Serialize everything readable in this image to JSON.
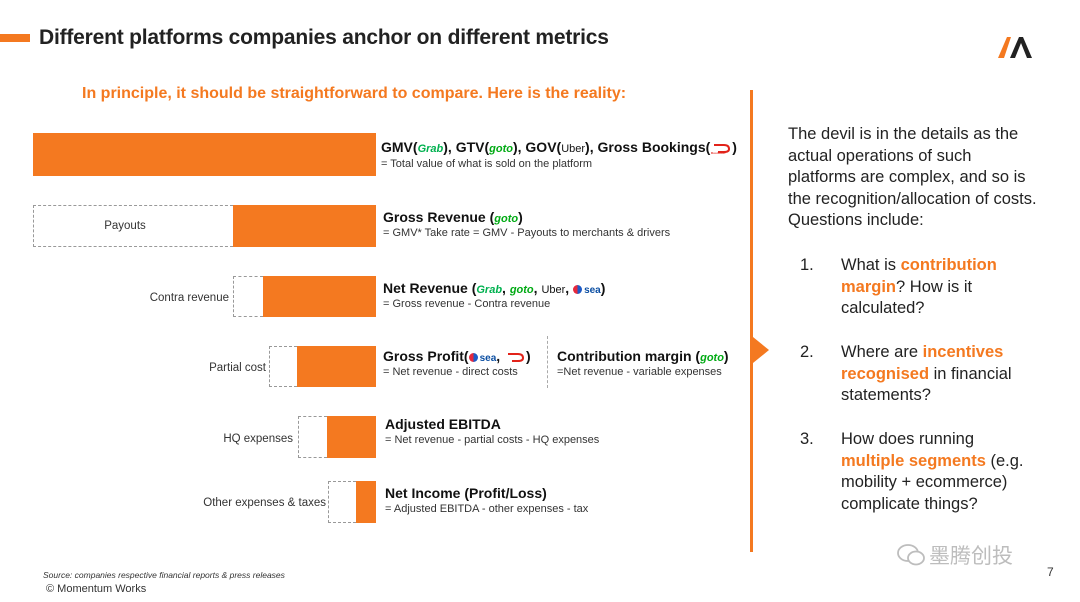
{
  "header": {
    "title": "Different platforms companies anchor on different metrics",
    "subtitle": "In principle, it should be straightforward to compare. Here is the reality:"
  },
  "brands": {
    "grab": "Grab",
    "goto": "goto",
    "uber": "Uber",
    "sea": "sea",
    "doordash": "DoorDash"
  },
  "metrics": [
    {
      "title": "GMV(",
      "title_mid1": "), GTV(",
      "title_mid2": "), GOV(",
      "title_mid3": "), Gross Bookings(",
      "title_end": ")",
      "desc": "= Total value of what is sold on the platform",
      "side_label": ""
    },
    {
      "title": "Gross Revenue (",
      "title_end": ")",
      "desc": "= GMV* Take rate = GMV - Payouts to merchants & drivers",
      "side_label": "Payouts"
    },
    {
      "title": "Net Revenue (",
      "sep": ", ",
      "title_end": ")",
      "desc": "= Gross revenue - Contra revenue",
      "side_label": "Contra revenue"
    },
    {
      "title": "Gross Profit(",
      "title_end": ")",
      "desc": "= Net revenue - direct costs",
      "side_label": "Partial cost"
    },
    {
      "title": "Adjusted EBITDA",
      "desc": "= Net revenue - partial costs - HQ expenses",
      "side_label": "HQ expenses"
    },
    {
      "title": "Net Income (Profit/Loss)",
      "desc": "= Adjusted EBITDA - other expenses - tax",
      "side_label": "Other expenses & taxes"
    }
  ],
  "contribution": {
    "title": "Contribution margin (",
    "title_end": ")",
    "desc": "=Net revenue - variable expenses"
  },
  "sidebar": {
    "intro": "The devil is in the details as the actual operations of such platforms are complex, and so is the recognition/allocation of costs. Questions include:",
    "questions": [
      {
        "num": "1.",
        "pre": "What is ",
        "hl": "contribution margin",
        "post": "? How is it calculated?"
      },
      {
        "num": "2.",
        "pre": "Where are ",
        "hl": "incentives recognised",
        "post": " in financial statements?"
      },
      {
        "num": "3.",
        "pre": "How does running ",
        "hl": "multiple segments",
        "post": " (e.g. mobility + ecommerce) complicate things?"
      }
    ]
  },
  "footer": {
    "source": "Source: companies respective financial reports & press releases",
    "copyright": "© Momentum Works",
    "page": "7",
    "watermark": "墨腾创投"
  },
  "colors": {
    "accent": "#f47920",
    "text": "#222222"
  }
}
